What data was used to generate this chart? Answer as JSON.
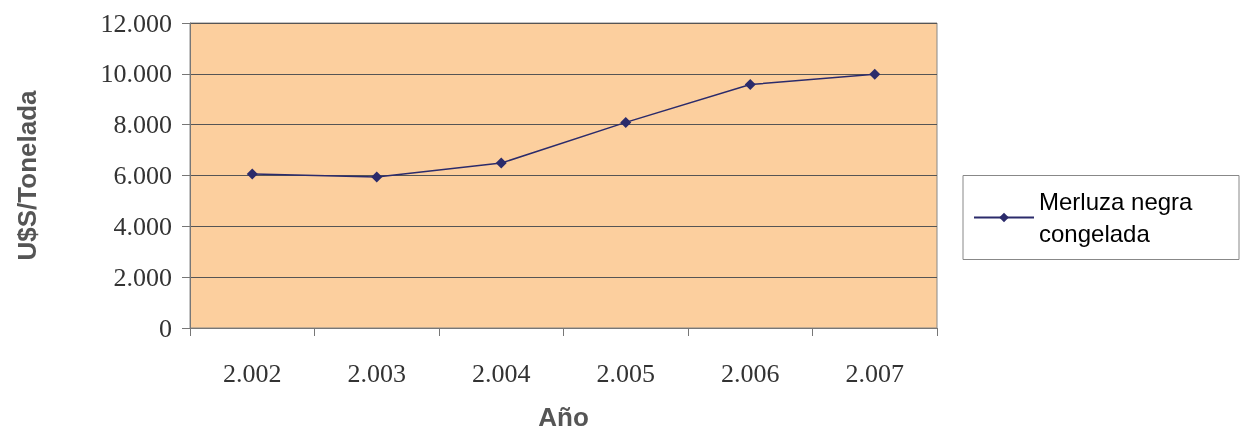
{
  "chart_data": {
    "type": "line",
    "xlabel": "Año",
    "ylabel": "U$S/Tonelada",
    "categories": [
      "2.002",
      "2.003",
      "2.004",
      "2.005",
      "2.006",
      "2.007"
    ],
    "series": [
      {
        "name": "Merluza negra congelada",
        "color": "#2b2b6b",
        "values": [
          6060,
          5940,
          6490,
          8090,
          9580,
          9980
        ]
      }
    ],
    "ylim": [
      0,
      12000
    ],
    "yticks": [
      {
        "value": 0,
        "label": "0"
      },
      {
        "value": 2000,
        "label": "2.000"
      },
      {
        "value": 4000,
        "label": "4.000"
      },
      {
        "value": 6000,
        "label": "6.000"
      },
      {
        "value": 8000,
        "label": "8.000"
      },
      {
        "value": 10000,
        "label": "10.000"
      },
      {
        "value": 12000,
        "label": "12.000"
      }
    ],
    "grid": "y",
    "legend": "right",
    "marker": "diamond",
    "line_style": "solid"
  }
}
